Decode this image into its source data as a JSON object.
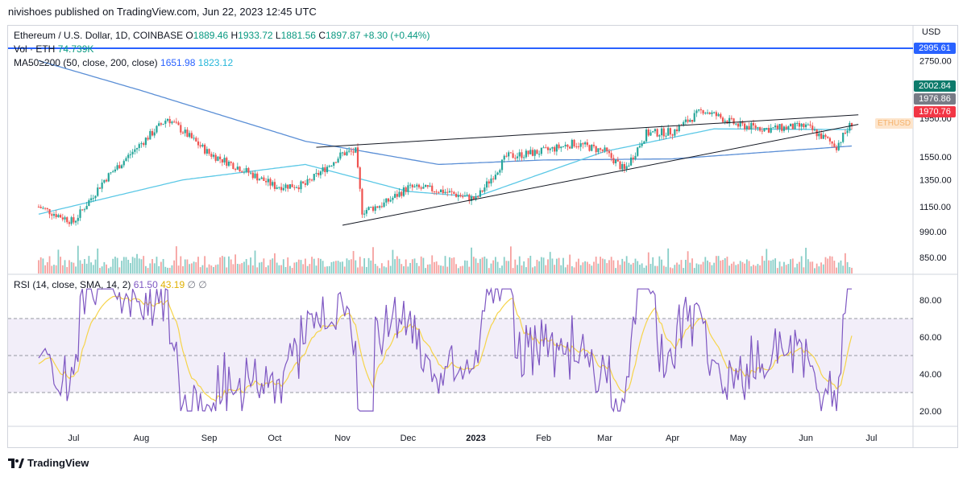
{
  "header": {
    "publisher_line": "nivishoes published on TradingView.com, Jun 22, 2023 12:45 UTC"
  },
  "legend": {
    "symbol": "Ethereum / U.S. Dollar, 1D, COINBASE",
    "ohlc": {
      "o_label": "O",
      "o": "1889.46",
      "h_label": "H",
      "h": "1933.72",
      "l_label": "L",
      "l": "1881.56",
      "c_label": "C",
      "c": "1897.87",
      "change": "+8.30 (+0.44%)"
    },
    "vol": {
      "label": "Vol · ETH",
      "value": "74.739K"
    },
    "ma": {
      "label": "MA50≥200 (50, close, 200, close)",
      "v1": "1651.98",
      "v2": "1823.12"
    },
    "rsi": {
      "label": "RSI (14, close, SMA, 14, 2)",
      "v1": "61.50",
      "v2": "43.19",
      "v3": "∅",
      "v4": "∅"
    }
  },
  "price_axis": {
    "currency": "USD",
    "ticks": [
      "2750.00",
      "1950.00",
      "1550.00",
      "1350.00",
      "1150.00",
      "990.00",
      "850.00"
    ],
    "tags": [
      {
        "text": "2995.61",
        "color": "#2962ff"
      },
      {
        "text": "2002.84",
        "color": "#0d7a6b"
      },
      {
        "text": "1976.86",
        "color": "#787b86"
      },
      {
        "text": "1970.76",
        "color": "#f23645"
      }
    ],
    "indicator_tag": "ETHUSD"
  },
  "rsi_axis": {
    "ticks": [
      "80.00",
      "60.00",
      "40.00",
      "20.00"
    ]
  },
  "time_axis": {
    "labels": [
      "Jul",
      "Aug",
      "Sep",
      "Oct",
      "Nov",
      "Dec",
      "2023",
      "Feb",
      "Mar",
      "Apr",
      "May",
      "Jun",
      "Jul"
    ]
  },
  "footer": {
    "brand": "TradingView"
  },
  "colors": {
    "up": "#26a69a",
    "down": "#ef5350",
    "ma50": "#5bc8e6",
    "ma200": "#5b8fd6",
    "rsi": "#7e57c2",
    "rsi_ma": "#f6d44a",
    "hline": "#2962ff"
  },
  "chart_data": {
    "type": "candlestick",
    "title": "Ethereum / U.S. Dollar, 1D, COINBASE",
    "price_scale": "log",
    "close_series_approx": {
      "dates": [
        "2022-06-15",
        "2022-07-01",
        "2022-07-15",
        "2022-08-01",
        "2022-08-13",
        "2022-09-01",
        "2022-09-15",
        "2022-10-01",
        "2022-10-15",
        "2022-11-01",
        "2022-11-07",
        "2022-11-10",
        "2022-11-20",
        "2022-12-01",
        "2022-12-15",
        "2023-01-01",
        "2023-01-15",
        "2023-02-01",
        "2023-02-15",
        "2023-03-01",
        "2023-03-10",
        "2023-03-20",
        "2023-04-01",
        "2023-04-15",
        "2023-05-01",
        "2023-05-15",
        "2023-06-01",
        "2023-06-15",
        "2023-06-22"
      ],
      "close": [
        1150,
        1050,
        1350,
        1680,
        1950,
        1580,
        1450,
        1300,
        1310,
        1580,
        1600,
        1120,
        1170,
        1290,
        1270,
        1200,
        1550,
        1600,
        1680,
        1600,
        1430,
        1780,
        1800,
        2050,
        1870,
        1830,
        1860,
        1650,
        1897.87
      ]
    },
    "ma50_approx": {
      "dates": [
        "2022-06-15",
        "2022-08-20",
        "2022-10-15",
        "2022-12-01",
        "2023-01-01",
        "2023-03-01",
        "2023-04-20",
        "2023-06-22"
      ],
      "values": [
        1100,
        1350,
        1480,
        1260,
        1220,
        1600,
        1830,
        1823.12
      ]
    },
    "ma200_approx": {
      "dates": [
        "2022-06-15",
        "2022-08-01",
        "2022-10-15",
        "2022-12-15",
        "2023-02-01",
        "2023-04-01",
        "2023-06-22"
      ],
      "values": [
        2750,
        2300,
        1700,
        1480,
        1520,
        1530,
        1651.98
      ]
    },
    "rsi_levels": {
      "upper": 70,
      "middle": 50,
      "lower": 30
    },
    "rsi_ylim": [
      15,
      90
    ]
  }
}
